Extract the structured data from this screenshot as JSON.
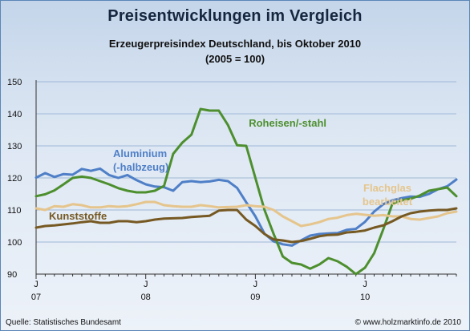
{
  "chart_data": {
    "type": "line",
    "title": "Preisentwicklungen im Vergleich",
    "subtitle": "Erzeugerpreisindex Deutschland, bis Oktober 2010",
    "subtitle2": "(2005 = 100)",
    "xlabel": "",
    "ylabel": "",
    "ylim": [
      90,
      150
    ],
    "yticks": [
      90,
      100,
      110,
      120,
      130,
      140,
      150
    ],
    "xlim": [
      0,
      46
    ],
    "xticks": [
      {
        "month": 0,
        "label": "J",
        "year": "07"
      },
      {
        "month": 12,
        "label": "J",
        "year": "08"
      },
      {
        "month": 24,
        "label": "J",
        "year": "09"
      },
      {
        "month": 36,
        "label": "J",
        "year": "10"
      }
    ],
    "grid": true,
    "legend": "inline labels",
    "series": [
      {
        "name": "Aluminium (-halbzeug)",
        "color": "#4f7fc7",
        "label_lines": [
          "Aluminium",
          "(-halbzeug)"
        ],
        "values": [
          120.1,
          121.5,
          120.3,
          121.2,
          121.0,
          122.8,
          122.2,
          122.9,
          120.9,
          120.0,
          120.9,
          119.3,
          118.0,
          117.3,
          117.1,
          116.0,
          118.7,
          119.0,
          118.7,
          118.9,
          119.4,
          119.0,
          116.9,
          112.4,
          108.0,
          102.6,
          100.2,
          99.3,
          98.9,
          100.5,
          102.0,
          102.5,
          102.7,
          102.8,
          103.8,
          104.1,
          106.3,
          109.5,
          111.8,
          113.0,
          113.7,
          114.2,
          114.1,
          115.0,
          116.5,
          117.4,
          119.5
        ]
      },
      {
        "name": "Roheisen/-stahl",
        "color": "#4d8f2e",
        "label_lines": [
          "Roheisen/-stahl"
        ],
        "values": [
          114.3,
          114.9,
          116.1,
          118.0,
          120.0,
          120.4,
          120.0,
          119.0,
          118.0,
          116.8,
          116.0,
          115.5,
          115.5,
          116.0,
          117.5,
          127.5,
          131.0,
          133.5,
          141.5,
          141.0,
          141.0,
          136.5,
          130.2,
          130.0,
          120.0,
          110.0,
          102.5,
          95.5,
          93.5,
          93.0,
          91.7,
          93.0,
          95.0,
          94.0,
          92.3,
          90.0,
          92.0,
          96.5,
          104.0,
          112.0,
          113.0,
          113.5,
          114.5,
          116.0,
          116.5,
          117.0,
          114.3
        ]
      },
      {
        "name": "Flachglas bearbeitet",
        "color": "#e5c58c",
        "label_lines": [
          "Flachglas",
          "bearbeitet"
        ],
        "values": [
          110.5,
          110.0,
          111.2,
          111.0,
          111.8,
          111.5,
          110.8,
          110.8,
          111.2,
          111.0,
          111.2,
          111.8,
          112.5,
          112.5,
          111.5,
          111.2,
          111.0,
          111.0,
          111.5,
          111.2,
          110.8,
          110.9,
          111.0,
          111.5,
          111.2,
          111.0,
          110.0,
          108.0,
          106.5,
          105.0,
          105.5,
          106.2,
          107.2,
          107.6,
          108.4,
          108.8,
          108.5,
          108.2,
          108.4,
          108.0,
          108.0,
          107.2,
          107.0,
          107.5,
          108.0,
          109.0,
          109.5
        ]
      },
      {
        "name": "Kunststoffe",
        "color": "#765922",
        "label_lines": [
          "Kunststoffe"
        ],
        "values": [
          104.5,
          105.0,
          105.2,
          105.5,
          105.8,
          106.2,
          106.5,
          106.0,
          106.0,
          106.5,
          106.5,
          106.2,
          106.5,
          107.0,
          107.3,
          107.4,
          107.5,
          107.8,
          108.0,
          108.2,
          109.8,
          110.0,
          110.0,
          107.0,
          105.0,
          102.5,
          100.8,
          100.5,
          100.0,
          100.3,
          101.0,
          101.8,
          102.2,
          102.3,
          103.0,
          103.2,
          103.6,
          104.5,
          105.2,
          106.5,
          108.0,
          109.0,
          109.5,
          109.8,
          110.0,
          110.0,
          110.5
        ]
      }
    ]
  },
  "footer": {
    "source": "Quelle: Statistisches Bundesamt",
    "copyright": "© www.holzmarktinfo.de 2010"
  },
  "colors": {
    "grid": "#9fb9d6",
    "axis": "#333333",
    "frame": "#5a86b8"
  }
}
